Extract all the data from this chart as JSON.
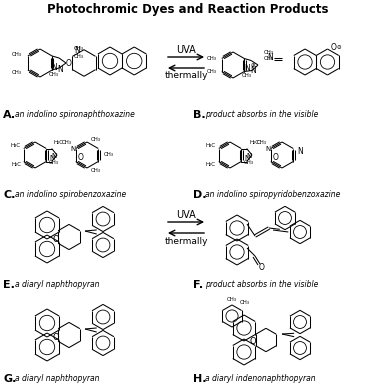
{
  "title": "Photochromic Dyes and Reaction Products",
  "labels": {
    "A": "an indolino spironaphthoxazine",
    "B": "product absorbs in the visible",
    "C": "an indolino spirobenzoxazine",
    "D": "an indolino spiropyridobenzoxazine",
    "E": "a diaryl naphthopyran",
    "F": "product absorbs in the visible",
    "G": "a diaryl naphthopyran",
    "H": "a diaryl indenonaphthopyran"
  },
  "fig_width": 3.77,
  "fig_height": 3.91,
  "dpi": 100
}
